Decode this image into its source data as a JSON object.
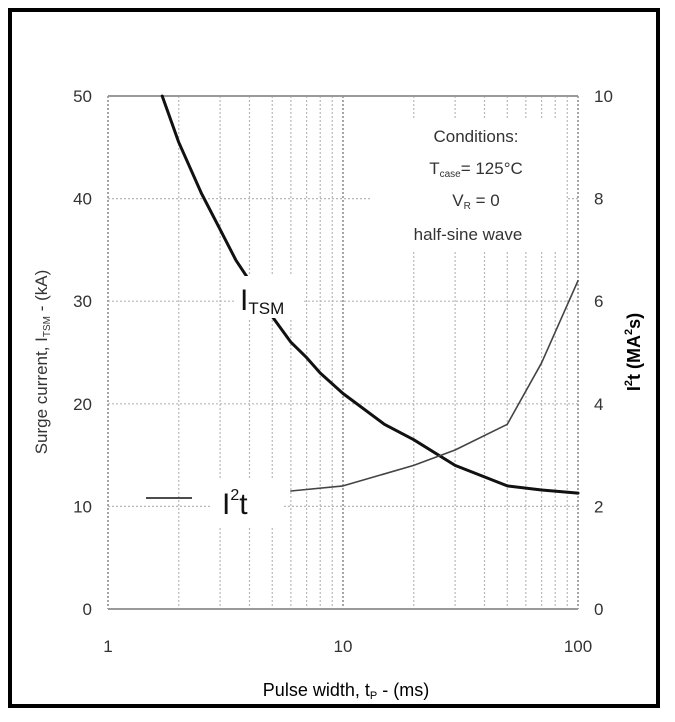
{
  "chart_data": {
    "type": "line",
    "x_scale": "log",
    "xlim": [
      1,
      100
    ],
    "ylim": [
      0,
      50
    ],
    "y2lim": [
      0,
      10
    ],
    "grid": true,
    "xlabel": {
      "main": "Pulse width, t",
      "sub": "P",
      "after": " - (ms)"
    },
    "ylabel": {
      "main": "Surge current, I",
      "sub": "TSM",
      "after": " - (kA)"
    },
    "y2label": {
      "main": "I",
      "sup1": "2",
      "mid": "t (MA",
      "sup2": "2",
      "after": "s)"
    },
    "x_ticks": [
      "1",
      "10",
      "100"
    ],
    "x_tick_values": [
      1,
      10,
      100
    ],
    "y_ticks": [
      "0",
      "10",
      "20",
      "30",
      "40",
      "50"
    ],
    "y_tick_values": [
      0,
      10,
      20,
      30,
      40,
      50
    ],
    "y2_ticks": [
      "0",
      "2",
      "4",
      "6",
      "8",
      "10"
    ],
    "y2_tick_values": [
      0,
      2,
      4,
      6,
      8,
      10
    ],
    "conditions": {
      "heading": "Conditions:",
      "t_case": {
        "main": "T",
        "sub": "case",
        "after": "= 125°C"
      },
      "v_r": {
        "main": "V",
        "sub": "R",
        "after": " = 0"
      },
      "wave": "half-sine wave"
    },
    "series_labels": {
      "itsm": {
        "main": "I",
        "sub": "TSM"
      },
      "i2t": {
        "main": "I",
        "sup": "2",
        "after": "t"
      }
    },
    "series": [
      {
        "id": "itsm",
        "axis": "left",
        "x": [
          1.7,
          2,
          2.5,
          3,
          3.5,
          4,
          5,
          6,
          7,
          8,
          10,
          15,
          20,
          30,
          50,
          70,
          100
        ],
        "values": [
          50,
          45.5,
          40.5,
          37,
          34,
          32,
          28.5,
          26,
          24.5,
          23,
          21,
          18,
          16.5,
          14,
          12,
          11.6,
          11.3
        ]
      },
      {
        "id": "i2t",
        "axis": "right",
        "x": [
          6,
          10,
          20,
          30,
          50,
          70,
          100
        ],
        "values": [
          2.3,
          2.4,
          2.8,
          3.1,
          3.6,
          4.8,
          6.4
        ]
      }
    ]
  }
}
